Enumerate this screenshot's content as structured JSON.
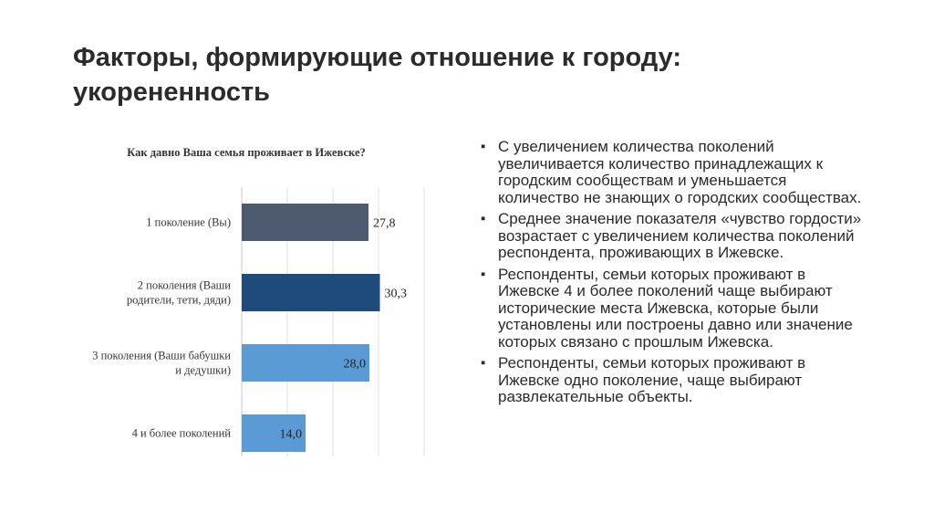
{
  "slide": {
    "title_line1": "Факторы, формирующие отношение к городу:",
    "title_line2": "укорененность"
  },
  "chart_data": {
    "type": "bar",
    "orientation": "horizontal",
    "title": "Как давно Ваша семья проживает в Ижевске?",
    "categories": [
      [
        "1 поколение (Вы)"
      ],
      [
        "2 поколения (Ваши",
        "родители, тети, дяди)"
      ],
      [
        "3 поколения (Ваши бабушки",
        "и дедушки)"
      ],
      [
        "4 и более поколений"
      ]
    ],
    "values": [
      27.8,
      30.3,
      28.0,
      14.0
    ],
    "value_labels": [
      "27,8",
      "30,3",
      "28,0",
      "14,0"
    ],
    "label_position": [
      "outside",
      "outside",
      "inside",
      "inside"
    ],
    "colors": [
      "#4e5a70",
      "#1f4a7c",
      "#5b9bd5",
      "#5b9bd5"
    ],
    "xlim": [
      0,
      40
    ],
    "grid": true,
    "legend": "none"
  },
  "bullets": [
    "С увеличением количества поколений увеличивается количество принадлежащих к городским сообществам и уменьшается количество не знающих о городских сообществах.",
    "Среднее значение показателя «чувство гордости» возрастает с увеличением количества поколений респондента, проживающих в Ижевске.",
    "Респонденты, семьи которых проживают в Ижевске 4 и более поколений чаще выбирают исторические места Ижевска, которые были установлены или построены давно или значение которых связано с прошлым Ижевска.",
    "Респонденты, семьи которых проживают в Ижевске одно поколение, чаще выбирают развлекательные объекты."
  ],
  "bullet_symbol": "▪"
}
